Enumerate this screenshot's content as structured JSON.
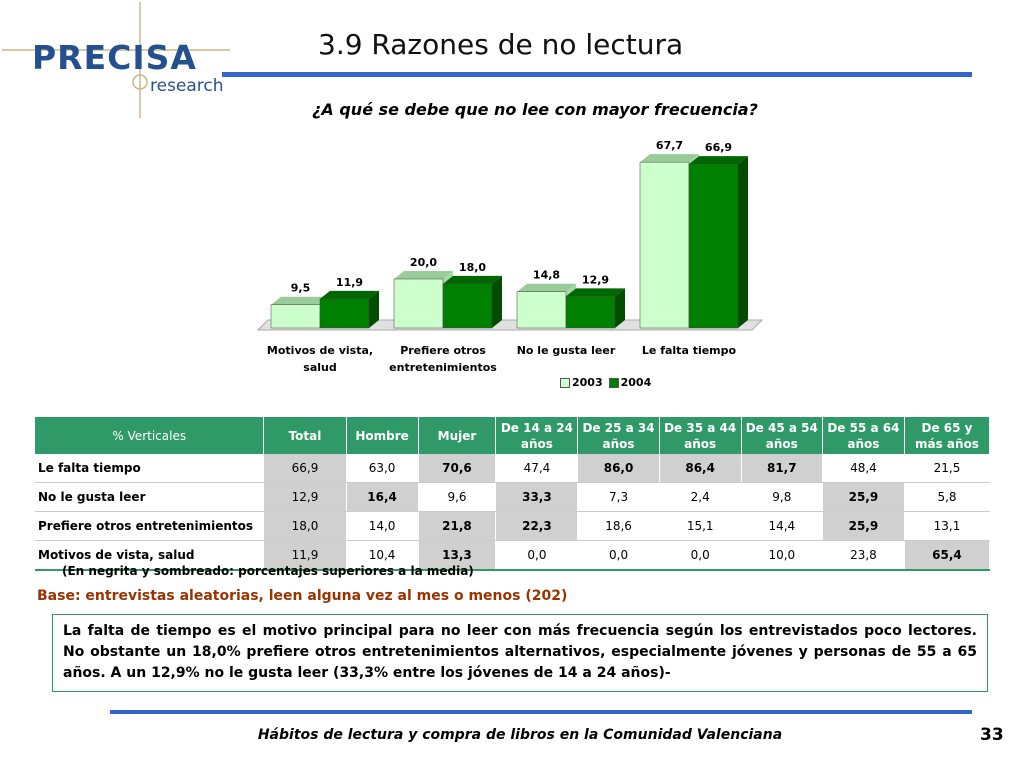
{
  "header": {
    "logo": "PRECISA",
    "logo_sub": "research",
    "title": "3.9 Razones de no lectura"
  },
  "chart_data": {
    "type": "bar",
    "title": "¿A qué se debe que no lee con mayor frecuencia?",
    "categories": [
      "Motivos de vista, salud",
      "Prefiere otros entretenimientos",
      "No le gusta leer",
      "Le falta tiempo"
    ],
    "series": [
      {
        "name": "2003",
        "color": "#ccffcc",
        "values": [
          9.5,
          20.0,
          14.8,
          67.7
        ],
        "value_labels": [
          "9,5",
          "20,0",
          "14,8",
          "67,7"
        ]
      },
      {
        "name": "2004",
        "color": "#008000",
        "values": [
          11.9,
          18.0,
          12.9,
          66.9
        ],
        "value_labels": [
          "11,9",
          "18,0",
          "12,9",
          "66,9"
        ]
      }
    ],
    "legend": "bottom"
  },
  "table": {
    "header": [
      "% Verticales",
      "Total",
      "Hombre",
      "Mujer",
      "De 14 a 24 años",
      "De 25 a 34 años",
      "De 35 a 44 años",
      "De 45 a 54 años",
      "De 55 a 64 años",
      "De 65 y más años"
    ],
    "rows": [
      {
        "label": "Le falta tiempo",
        "values": [
          "66,9",
          "63,0",
          "70,6",
          "47,4",
          "86,0",
          "86,4",
          "81,7",
          "48,4",
          "21,5"
        ],
        "bold": [
          false,
          false,
          true,
          false,
          true,
          true,
          true,
          false,
          false
        ]
      },
      {
        "label": "No le gusta leer",
        "values": [
          "12,9",
          "16,4",
          "9,6",
          "33,3",
          "7,3",
          "2,4",
          "9,8",
          "25,9",
          "5,8"
        ],
        "bold": [
          false,
          true,
          false,
          true,
          false,
          false,
          false,
          true,
          false
        ]
      },
      {
        "label": "Prefiere otros entretenimientos",
        "values": [
          "18,0",
          "14,0",
          "21,8",
          "22,3",
          "18,6",
          "15,1",
          "14,4",
          "25,9",
          "13,1"
        ],
        "bold": [
          false,
          false,
          true,
          true,
          false,
          false,
          false,
          true,
          false
        ]
      },
      {
        "label": "Motivos de vista, salud",
        "values": [
          "11,9",
          "10,4",
          "13,3",
          "0,0",
          "0,0",
          "0,0",
          "10,0",
          "23,8",
          "65,4"
        ],
        "bold": [
          false,
          false,
          true,
          false,
          false,
          false,
          false,
          false,
          true
        ]
      }
    ],
    "note": "(En negrita y sombreado: porcentajes superiores a la media)"
  },
  "base": "Base: entrevistas aleatorias, leen alguna vez al mes o menos (202)",
  "summary": "La falta de tiempo es el motivo principal para no leer con más frecuencia según los entrevistados poco lectores. No obstante un 18,0% prefiere otros entretenimientos alternativos, especialmente jóvenes y personas de 55 a 65 años. A un 12,9% no le gusta leer (33,3% entre los jóvenes de 14 a 24 años)-",
  "footer": {
    "text": "Hábitos de lectura y compra de libros en la Comunidad Valenciana",
    "page": "33"
  }
}
